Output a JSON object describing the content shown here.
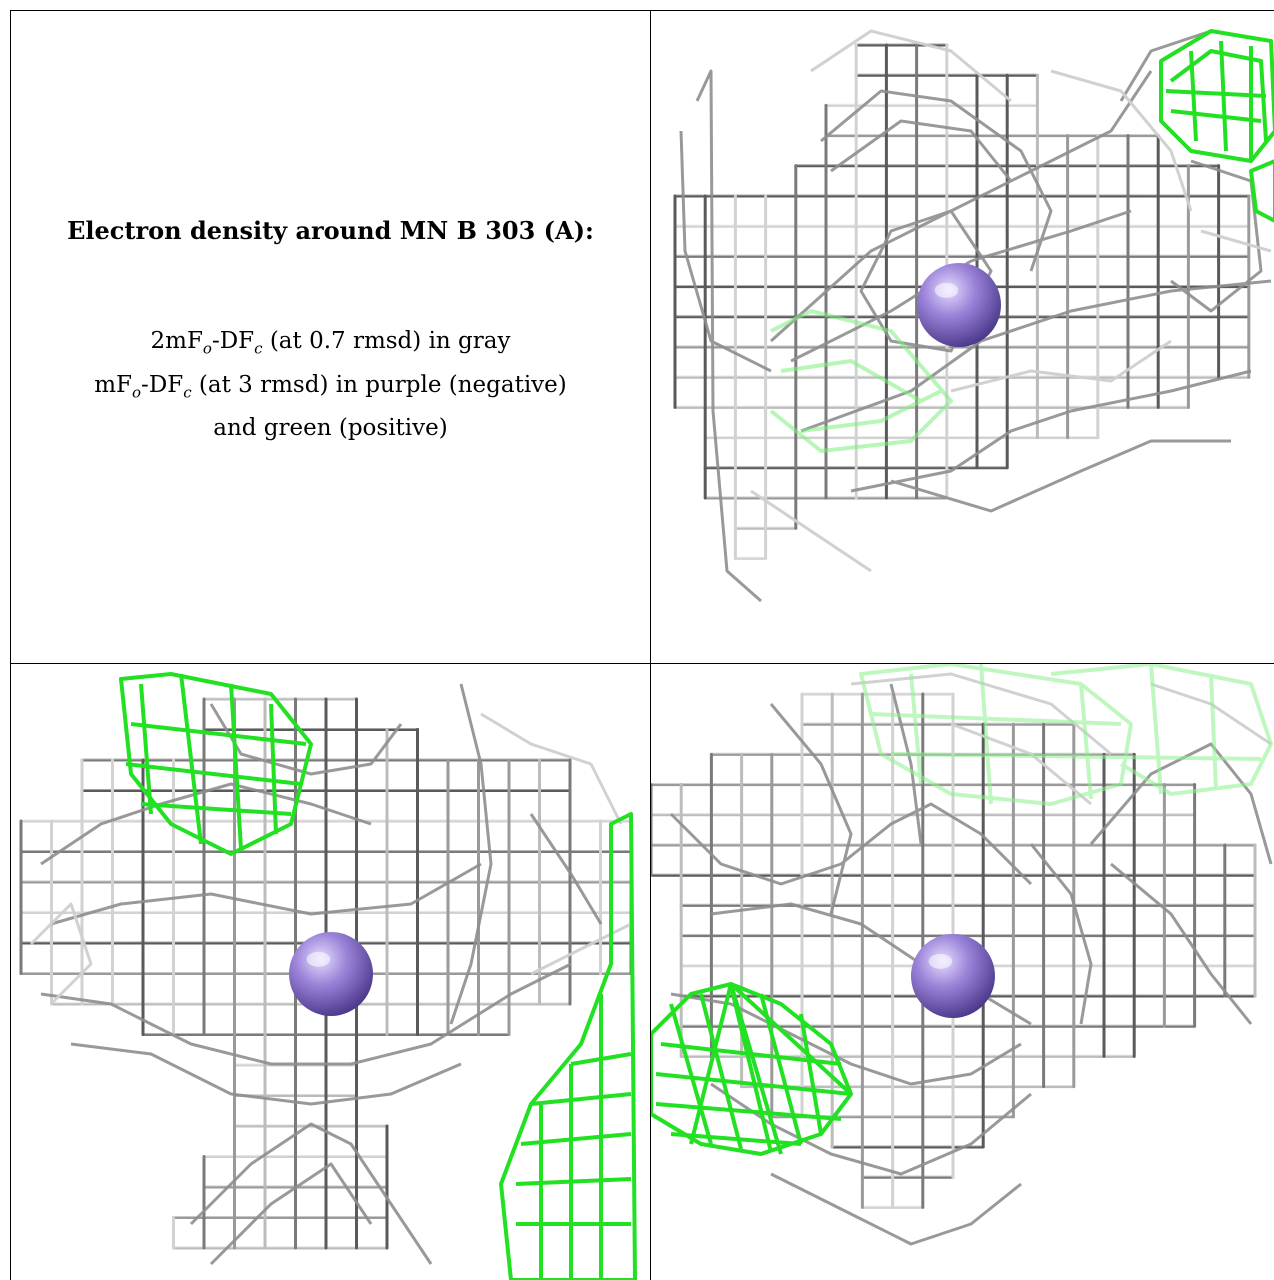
{
  "caption": {
    "title": "Electron density around MN B 303 (A):",
    "line1": {
      "pre": "2mF",
      "sub1": "o",
      "mid": "-DF",
      "sub2": "c",
      "post": " (at 0.7 rmsd) in gray"
    },
    "line2": {
      "pre": "mF",
      "sub1": "o",
      "mid": "-DF",
      "sub2": "c",
      "post": " (at 3 rmsd) in purple (negative)"
    },
    "line3": "and green (positive)"
  },
  "colors": {
    "map_gray": "#9a9a9a",
    "map_gray_dark": "#5a5a5a",
    "map_gray_light": "#d2d2d2",
    "positive_green": "#22e022",
    "atom_purple": "#9a82d8",
    "border": "#000000"
  },
  "panels": [
    {
      "name": "view-1",
      "atom": "MN B 303"
    },
    {
      "name": "view-2",
      "atom": "MN B 303"
    },
    {
      "name": "view-3",
      "atom": "MN B 303"
    }
  ]
}
